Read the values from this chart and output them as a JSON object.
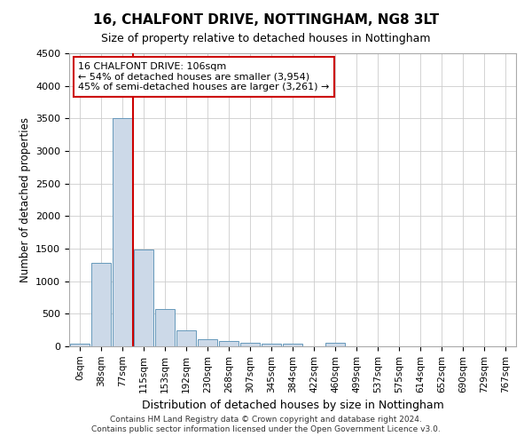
{
  "title": "16, CHALFONT DRIVE, NOTTINGHAM, NG8 3LT",
  "subtitle": "Size of property relative to detached houses in Nottingham",
  "xlabel": "Distribution of detached houses by size in Nottingham",
  "ylabel": "Number of detached properties",
  "bin_labels": [
    "0sqm",
    "38sqm",
    "77sqm",
    "115sqm",
    "153sqm",
    "192sqm",
    "230sqm",
    "268sqm",
    "307sqm",
    "345sqm",
    "384sqm",
    "422sqm",
    "460sqm",
    "499sqm",
    "537sqm",
    "575sqm",
    "614sqm",
    "652sqm",
    "690sqm",
    "729sqm",
    "767sqm"
  ],
  "bar_heights": [
    35,
    1280,
    3500,
    1480,
    575,
    240,
    115,
    85,
    55,
    40,
    35,
    0,
    60,
    0,
    0,
    0,
    0,
    0,
    0,
    0,
    0
  ],
  "bar_color": "#ccd9e8",
  "bar_edge_color": "#6699bb",
  "vline_x_idx": 2,
  "vline_color": "#cc0000",
  "ylim": [
    0,
    4500
  ],
  "yticks": [
    0,
    500,
    1000,
    1500,
    2000,
    2500,
    3000,
    3500,
    4000,
    4500
  ],
  "annotation_line1": "16 CHALFONT DRIVE: 106sqm",
  "annotation_line2": "← 54% of detached houses are smaller (3,954)",
  "annotation_line3": "45% of semi-detached houses are larger (3,261) →",
  "annotation_box_color": "#ffffff",
  "annotation_box_edge": "#cc0000",
  "footer_line1": "Contains HM Land Registry data © Crown copyright and database right 2024.",
  "footer_line2": "Contains public sector information licensed under the Open Government Licence v3.0.",
  "bg_color": "#ffffff",
  "plot_bg_color": "#ffffff",
  "grid_color": "#cccccc"
}
